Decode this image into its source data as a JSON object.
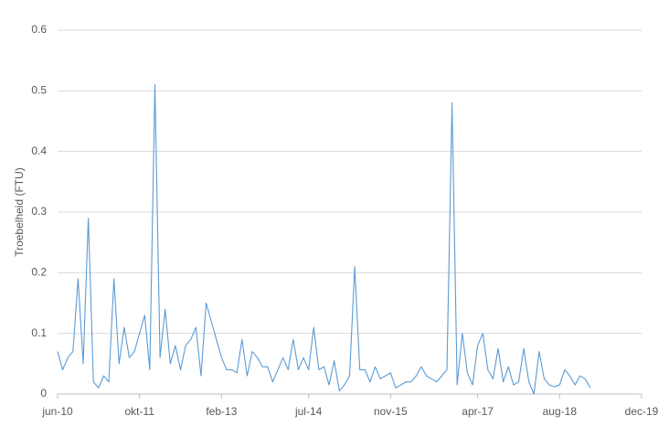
{
  "chart_data": {
    "type": "line",
    "y_label": "Troebelheid (FTU)",
    "x": [
      "2010-06",
      "2010-07",
      "2010-08",
      "2010-09",
      "2010-10",
      "2010-11",
      "2010-12",
      "2011-01",
      "2011-02",
      "2011-03",
      "2011-04",
      "2011-05",
      "2011-06",
      "2011-07",
      "2011-08",
      "2011-09",
      "2011-10",
      "2011-11",
      "2011-12",
      "2012-01",
      "2012-02",
      "2012-03",
      "2012-04",
      "2012-05",
      "2012-06",
      "2012-07",
      "2012-08",
      "2012-09",
      "2012-10",
      "2012-11",
      "2012-12",
      "2013-01",
      "2013-02",
      "2013-03",
      "2013-04",
      "2013-05",
      "2013-06",
      "2013-07",
      "2013-08",
      "2013-09",
      "2013-10",
      "2013-11",
      "2013-12",
      "2014-01",
      "2014-02",
      "2014-03",
      "2014-04",
      "2014-05",
      "2014-06",
      "2014-07",
      "2014-08",
      "2014-09",
      "2014-10",
      "2014-11",
      "2014-12",
      "2015-01",
      "2015-02",
      "2015-03",
      "2015-04",
      "2015-05",
      "2015-06",
      "2015-07",
      "2015-08",
      "2015-09",
      "2015-10",
      "2015-11",
      "2015-12",
      "2016-01",
      "2016-02",
      "2016-03",
      "2016-04",
      "2016-05",
      "2016-06",
      "2016-07",
      "2016-08",
      "2016-09",
      "2016-10",
      "2016-11",
      "2016-12",
      "2017-01",
      "2017-02",
      "2017-03",
      "2017-04",
      "2017-05",
      "2017-06",
      "2017-07",
      "2017-08",
      "2017-09",
      "2017-10",
      "2017-11",
      "2017-12",
      "2018-01",
      "2018-02",
      "2018-03",
      "2018-04",
      "2018-05",
      "2018-06",
      "2018-07",
      "2018-08",
      "2018-09",
      "2018-10",
      "2018-11",
      "2018-12",
      "2019-01",
      "2019-02"
    ],
    "series": [
      {
        "color": "#5b9bd5",
        "values": [
          0.07,
          0.04,
          0.06,
          0.07,
          0.19,
          0.05,
          0.29,
          0.02,
          0.01,
          0.03,
          0.02,
          0.19,
          0.05,
          0.11,
          0.06,
          0.07,
          0.1,
          0.13,
          0.04,
          0.51,
          0.06,
          0.14,
          0.05,
          0.08,
          0.04,
          0.08,
          0.09,
          0.11,
          0.03,
          0.15,
          0.12,
          0.09,
          0.06,
          0.04,
          0.04,
          0.035,
          0.09,
          0.03,
          0.07,
          0.06,
          0.045,
          0.045,
          0.02,
          0.04,
          0.06,
          0.04,
          0.09,
          0.04,
          0.06,
          0.04,
          0.11,
          0.04,
          0.045,
          0.015,
          0.055,
          0.005,
          0.015,
          0.03,
          0.21,
          0.04,
          0.04,
          0.02,
          0.045,
          0.025,
          0.03,
          0.035,
          0.01,
          0.015,
          0.02,
          0.02,
          0.03,
          0.045,
          0.03,
          0.025,
          0.02,
          0.03,
          0.04,
          0.48,
          0.015,
          0.1,
          0.035,
          0.015,
          0.08,
          0.1,
          0.04,
          0.025,
          0.075,
          0.02,
          0.045,
          0.015,
          0.02,
          0.075,
          0.02,
          0.0,
          0.07,
          0.025,
          0.015,
          0.012,
          0.015,
          0.04,
          0.03,
          0.015,
          0.03,
          0.025,
          0.01
        ]
      }
    ],
    "xlim": [
      "2010-06",
      "2019-12"
    ],
    "xticks": [
      {
        "value": "2010-06",
        "label": "jun-10"
      },
      {
        "value": "2011-10",
        "label": "okt-11"
      },
      {
        "value": "2013-02",
        "label": "feb-13"
      },
      {
        "value": "2014-07",
        "label": "jul-14"
      },
      {
        "value": "2015-11",
        "label": "nov-15"
      },
      {
        "value": "2017-04",
        "label": "apr-17"
      },
      {
        "value": "2018-08",
        "label": "aug-18"
      },
      {
        "value": "2019-12",
        "label": "dec-19"
      }
    ],
    "ylim": [
      0,
      0.6
    ],
    "yticks": [
      0,
      0.1,
      0.2,
      0.3,
      0.4,
      0.5,
      0.6
    ],
    "grid": true
  }
}
